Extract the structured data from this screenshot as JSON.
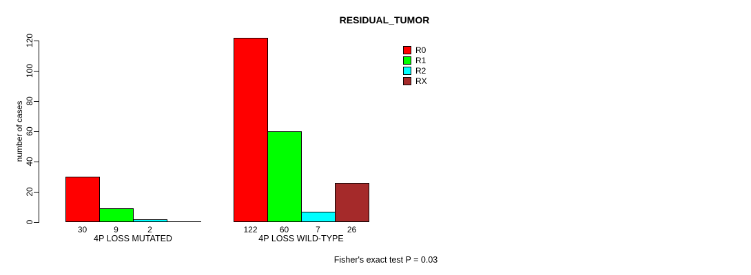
{
  "chart_data": {
    "type": "bar",
    "title": "RESIDUAL_TUMOR",
    "ylabel": "number of cases",
    "xlabel": "",
    "ylim": [
      0,
      120
    ],
    "yticks": [
      0,
      20,
      40,
      60,
      80,
      100,
      120
    ],
    "grid": false,
    "legend_position": "top-right",
    "categories": [
      "4P LOSS MUTATED",
      "4P LOSS WILD-TYPE"
    ],
    "series": [
      {
        "name": "R0",
        "color": "#FF0000",
        "values": [
          30,
          122
        ]
      },
      {
        "name": "R1",
        "color": "#00FF00",
        "values": [
          9,
          60
        ]
      },
      {
        "name": "R2",
        "color": "#00FFFF",
        "values": [
          2,
          7
        ]
      },
      {
        "name": "RX",
        "color": "#A52A2A",
        "values": [
          0,
          26
        ]
      }
    ],
    "bar_labels": [
      [
        "30",
        "9",
        "2",
        ""
      ],
      [
        "122",
        "60",
        "7",
        "26"
      ]
    ],
    "annotation": "Fisher's exact test P = 0.03"
  }
}
